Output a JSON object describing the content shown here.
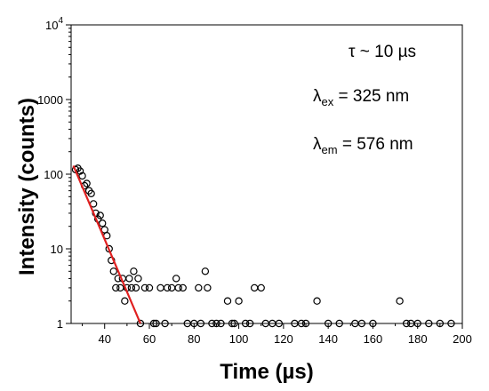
{
  "chart_data": {
    "type": "scatter",
    "xlabel": "Time (µs)",
    "ylabel": "Intensity (counts)",
    "xlim": [
      25,
      200
    ],
    "ylim": [
      1,
      10000
    ],
    "y_scale": "log",
    "x_ticks": [
      40,
      60,
      80,
      100,
      120,
      140,
      160,
      180,
      200
    ],
    "y_ticks": [
      {
        "value": 1,
        "label": "1"
      },
      {
        "value": 10,
        "label": "10"
      },
      {
        "value": 100,
        "label": "100"
      },
      {
        "value": 1000,
        "label": "1000"
      },
      {
        "value": 10000,
        "label": "10",
        "sup": "4"
      }
    ],
    "marker": "open-circle",
    "marker_color": "#000000",
    "fit_color": "#e02020",
    "annotations": {
      "tau": "τ ~ 10 µs",
      "lambda_ex": {
        "symbol": "λ",
        "sub": "ex",
        "text": " = 325 nm"
      },
      "lambda_em": {
        "symbol": "λ",
        "sub": "em",
        "text": " = 576 nm"
      }
    },
    "points": [
      [
        27,
        115
      ],
      [
        28,
        120
      ],
      [
        29,
        110
      ],
      [
        30,
        95
      ],
      [
        31,
        70
      ],
      [
        32,
        75
      ],
      [
        33,
        60
      ],
      [
        34,
        55
      ],
      [
        35,
        40
      ],
      [
        36,
        30
      ],
      [
        37,
        25
      ],
      [
        38,
        28
      ],
      [
        39,
        22
      ],
      [
        40,
        18
      ],
      [
        41,
        15
      ],
      [
        42,
        10
      ],
      [
        43,
        7
      ],
      [
        44,
        5
      ],
      [
        45,
        3
      ],
      [
        46,
        4
      ],
      [
        47,
        3
      ],
      [
        48,
        4
      ],
      [
        49,
        2
      ],
      [
        50,
        3
      ],
      [
        51,
        4
      ],
      [
        52,
        3
      ],
      [
        53,
        5
      ],
      [
        54,
        3
      ],
      [
        55,
        4
      ],
      [
        56,
        1
      ],
      [
        58,
        3
      ],
      [
        60,
        3
      ],
      [
        62,
        1
      ],
      [
        63,
        1
      ],
      [
        65,
        3
      ],
      [
        67,
        1
      ],
      [
        68,
        3
      ],
      [
        70,
        3
      ],
      [
        72,
        4
      ],
      [
        73,
        3
      ],
      [
        75,
        3
      ],
      [
        77,
        1
      ],
      [
        80,
        1
      ],
      [
        82,
        3
      ],
      [
        83,
        1
      ],
      [
        85,
        5
      ],
      [
        86,
        3
      ],
      [
        88,
        1
      ],
      [
        90,
        1
      ],
      [
        92,
        1
      ],
      [
        95,
        2
      ],
      [
        97,
        1
      ],
      [
        98,
        1
      ],
      [
        100,
        2
      ],
      [
        103,
        1
      ],
      [
        105,
        1
      ],
      [
        107,
        3
      ],
      [
        110,
        3
      ],
      [
        112,
        1
      ],
      [
        115,
        1
      ],
      [
        118,
        1
      ],
      [
        125,
        1
      ],
      [
        128,
        1
      ],
      [
        130,
        1
      ],
      [
        135,
        2
      ],
      [
        140,
        1
      ],
      [
        145,
        1
      ],
      [
        152,
        1
      ],
      [
        155,
        1
      ],
      [
        160,
        1
      ],
      [
        172,
        2
      ],
      [
        175,
        1
      ],
      [
        177,
        1
      ],
      [
        180,
        1
      ],
      [
        185,
        1
      ],
      [
        190,
        1
      ],
      [
        195,
        1
      ]
    ],
    "fit_line": [
      [
        26,
        130
      ],
      [
        56,
        1
      ]
    ]
  }
}
